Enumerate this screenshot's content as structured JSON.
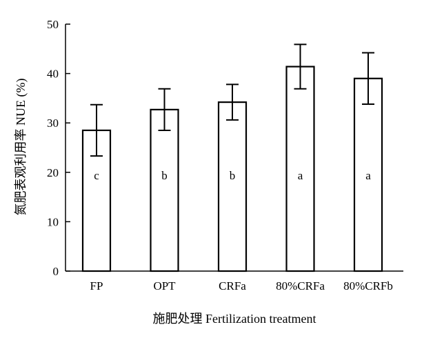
{
  "chart_data": {
    "type": "bar",
    "title": "",
    "xlabel": "施肥处理 Fertilization treatment",
    "ylabel": "氮肥表观利用率 NUE (%)",
    "ylim": [
      0,
      50
    ],
    "yticks": [
      0,
      10,
      20,
      30,
      40,
      50
    ],
    "categories": [
      "FP",
      "OPT",
      "CRFa",
      "80%CRFa",
      "80%CRFb"
    ],
    "values": [
      28.5,
      32.7,
      34.2,
      41.4,
      39.0
    ],
    "error_bars": [
      5.2,
      4.2,
      3.6,
      4.5,
      5.2
    ],
    "significance_letters": [
      "c",
      "b",
      "b",
      "a",
      "a"
    ],
    "bar_fill": "#ffffff",
    "bar_stroke": "#000000",
    "grid": false,
    "legend": "none"
  }
}
